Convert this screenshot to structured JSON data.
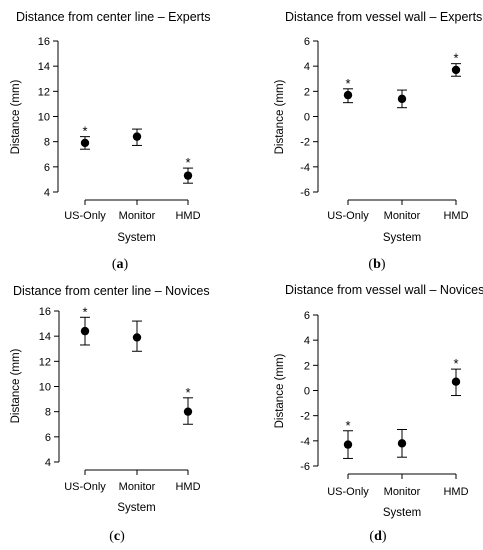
{
  "chart_data": [
    {
      "type": "scatter",
      "title": "Distance from center line – Experts",
      "xlabel": "System",
      "ylabel": "Distance (mm)",
      "categories": [
        "US-Only",
        "Monitor",
        "HMD"
      ],
      "values": [
        7.9,
        8.4,
        5.3
      ],
      "error_low": [
        7.4,
        7.7,
        4.7
      ],
      "error_high": [
        8.4,
        9.0,
        5.9
      ],
      "significant": [
        true,
        false,
        true
      ],
      "significance_marker": "*",
      "ylim": [
        4,
        16
      ],
      "yticks": [
        4,
        6,
        8,
        10,
        12,
        14,
        16
      ],
      "panel_label": "a",
      "grid": false
    },
    {
      "type": "scatter",
      "title": "Distance from vessel wall – Experts",
      "xlabel": "System",
      "ylabel": "Distance (mm)",
      "categories": [
        "US-Only",
        "Monitor",
        "HMD"
      ],
      "values": [
        1.7,
        1.4,
        3.7
      ],
      "error_low": [
        1.1,
        0.7,
        3.2
      ],
      "error_high": [
        2.2,
        2.1,
        4.2
      ],
      "significant": [
        true,
        false,
        true
      ],
      "significance_marker": "*",
      "ylim": [
        -6,
        6
      ],
      "yticks": [
        -6,
        -4,
        -2,
        0,
        2,
        4,
        6
      ],
      "panel_label": "b",
      "grid": false
    },
    {
      "type": "scatter",
      "title": "Distance from center line – Novices",
      "xlabel": "System",
      "ylabel": "Distance (mm)",
      "categories": [
        "US-Only",
        "Monitor",
        "HMD"
      ],
      "values": [
        14.4,
        13.9,
        8.0
      ],
      "error_low": [
        13.3,
        12.8,
        7.0
      ],
      "error_high": [
        15.5,
        15.2,
        9.1
      ],
      "significant": [
        true,
        false,
        true
      ],
      "significance_marker": "*",
      "ylim": [
        4,
        16
      ],
      "yticks": [
        4,
        6,
        8,
        10,
        12,
        14,
        16
      ],
      "panel_label": "c",
      "grid": false
    },
    {
      "type": "scatter",
      "title": "Distance from vessel wall – Novices",
      "xlabel": "System",
      "ylabel": "Distance (mm)",
      "categories": [
        "US-Only",
        "Monitor",
        "HMD"
      ],
      "values": [
        -4.3,
        -4.2,
        0.7
      ],
      "error_low": [
        -5.4,
        -5.3,
        -0.4
      ],
      "error_high": [
        -3.2,
        -3.1,
        1.7
      ],
      "significant": [
        true,
        false,
        true
      ],
      "significance_marker": "*",
      "ylim": [
        -6,
        6
      ],
      "yticks": [
        -6,
        -4,
        -2,
        0,
        2,
        4,
        6
      ],
      "panel_label": "d",
      "grid": false
    }
  ]
}
